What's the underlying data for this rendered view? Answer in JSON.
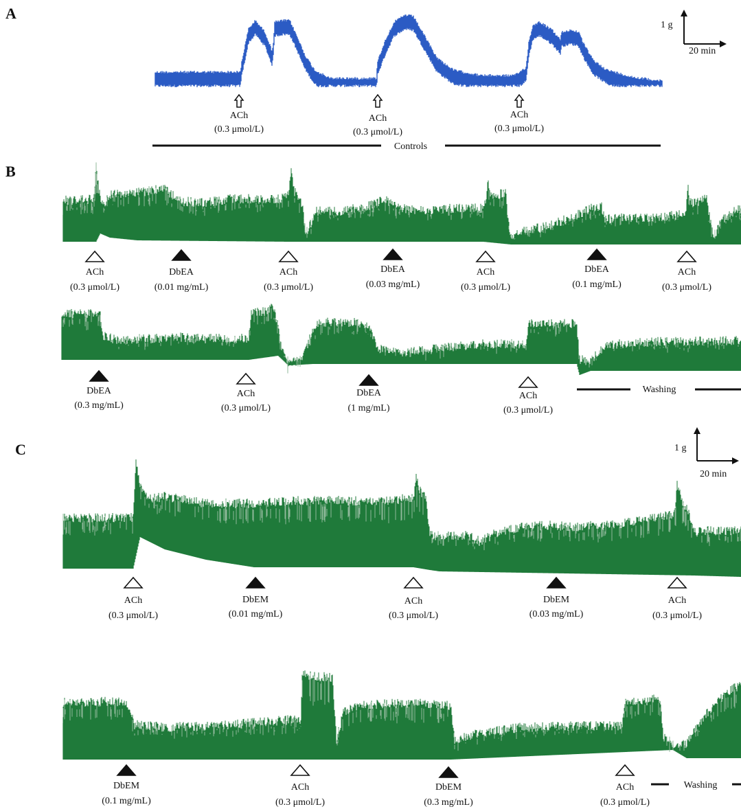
{
  "colors": {
    "trace_a": "#2b5bc4",
    "trace_bc": "#1f7a3a",
    "trace_bc_light": "#8fb89a",
    "ink": "#111111"
  },
  "panels": [
    {
      "label": "A"
    },
    {
      "label": "B"
    },
    {
      "label": "C"
    }
  ],
  "scale_bars": [
    {
      "vertical": "1 g",
      "horizontal": "20 min"
    },
    {
      "vertical": "1 g",
      "horizontal": "20 min"
    }
  ],
  "bar_labels": [
    {
      "text": "Controls"
    },
    {
      "text": "Washing"
    },
    {
      "text": "Washing"
    }
  ],
  "markers": [
    {
      "kind": "arrow",
      "agent": "ACh",
      "dose": "(0.3 μmol/L)"
    },
    {
      "kind": "arrow",
      "agent": "ACh",
      "dose": "(0.3 μmol/L)"
    },
    {
      "kind": "arrow",
      "agent": "ACh",
      "dose": "(0.3 μmol/L)"
    },
    {
      "kind": "open",
      "agent": "ACh",
      "dose": "(0.3 μmol/L)"
    },
    {
      "kind": "filled",
      "agent": "DbEA",
      "dose": "(0.01 mg/mL)"
    },
    {
      "kind": "open",
      "agent": "ACh",
      "dose": "(0.3 μmol/L)"
    },
    {
      "kind": "filled",
      "agent": "DbEA",
      "dose": "(0.03 mg/mL)"
    },
    {
      "kind": "open",
      "agent": "ACh",
      "dose": "(0.3 μmol/L)"
    },
    {
      "kind": "filled",
      "agent": "DbEA",
      "dose": "(0.1 mg/mL)"
    },
    {
      "kind": "open",
      "agent": "ACh",
      "dose": "(0.3 μmol/L)"
    },
    {
      "kind": "filled",
      "agent": "DbEA",
      "dose": "(0.3 mg/mL)"
    },
    {
      "kind": "open",
      "agent": "ACh",
      "dose": "(0.3 μmol/L)"
    },
    {
      "kind": "filled",
      "agent": "DbEA",
      "dose": "(1 mg/mL)"
    },
    {
      "kind": "open",
      "agent": "ACh",
      "dose": "(0.3 μmol/L)"
    },
    {
      "kind": "open",
      "agent": "ACh",
      "dose": "(0.3 μmol/L)"
    },
    {
      "kind": "filled",
      "agent": "DbEM",
      "dose": "(0.01 mg/mL)"
    },
    {
      "kind": "open",
      "agent": "ACh",
      "dose": "(0.3 μmol/L)"
    },
    {
      "kind": "filled",
      "agent": "DbEM",
      "dose": "(0.03 mg/mL)"
    },
    {
      "kind": "open",
      "agent": "ACh",
      "dose": "(0.3 μmol/L)"
    },
    {
      "kind": "filled",
      "agent": "DbEM",
      "dose": "(0.1 mg/mL)"
    },
    {
      "kind": "open",
      "agent": "ACh",
      "dose": "(0.3 μmol/L)"
    },
    {
      "kind": "filled",
      "agent": "DbEM",
      "dose": "(0.3 mg/mL)"
    },
    {
      "kind": "open",
      "agent": "ACh",
      "dose": "(0.3 μmol/L)"
    }
  ],
  "chart_data": {
    "type": "line",
    "title": "",
    "xlabel": "",
    "ylabel": "",
    "units": {
      "tension": "g",
      "time": "min"
    },
    "note": "Isometric tension recordings; panel A controls, panel B DbEA additions, panel C DbEM additions"
  }
}
